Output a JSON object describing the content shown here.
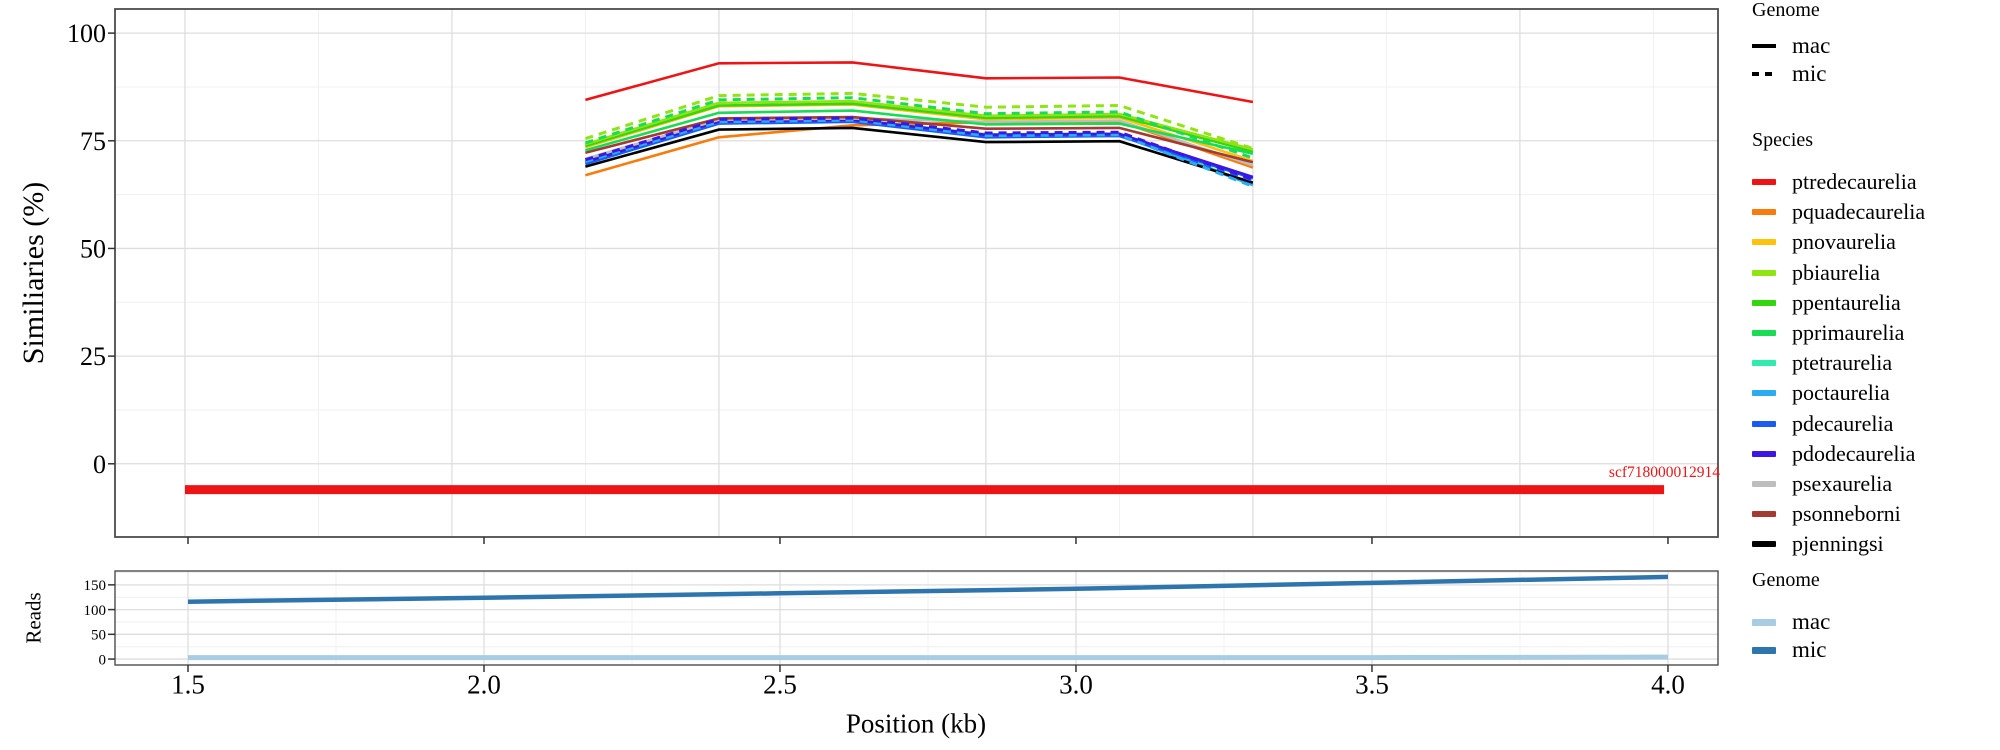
{
  "chart_data": [
    {
      "id": "similarity_panel",
      "type": "line",
      "title": "",
      "xlabel": "",
      "ylabel": "Similiaries (%)",
      "grid": true,
      "x_domain": [
        1.369,
        4.371
      ],
      "y_domain": [
        -17,
        105.6
      ],
      "x_breaks": {
        "major": [
          1.5,
          2.0,
          2.5,
          3.0,
          3.5,
          4.0
        ],
        "minor": [
          1.75,
          2.25,
          2.75,
          3.25,
          3.75,
          4.25
        ]
      },
      "y_breaks": {
        "major": [
          0,
          25,
          50,
          75,
          100
        ],
        "minor": [
          12.5,
          37.5,
          62.5,
          87.5
        ]
      },
      "y_tick_labels": [
        "0",
        "25",
        "50",
        "75",
        "100"
      ],
      "x": [
        2.25,
        2.5,
        2.75,
        3.0,
        3.25,
        3.5
      ],
      "series": [
        {
          "species": "pquadecaurelia",
          "genome": "mac",
          "color": "#F97B0B",
          "dash": false,
          "values": [
            67,
            75.8,
            78.6,
            79.3,
            79.5,
            68.8
          ]
        },
        {
          "species": "pnovaurelia",
          "genome": "mac",
          "color": "#FEC10E",
          "dash": false,
          "values": [
            73.5,
            83,
            83.4,
            80,
            80.4,
            70.3
          ]
        },
        {
          "species": "ptetraurelia",
          "genome": "mac",
          "color": "#2FECAC",
          "dash": false,
          "values": [
            70.4,
            79.6,
            80,
            76.5,
            76.7,
            64.9
          ]
        },
        {
          "species": "poctaurelia",
          "genome": "mac",
          "color": "#2BABF0",
          "dash": false,
          "values": [
            70,
            79.2,
            79.6,
            76.1,
            76.3,
            64.7
          ]
        },
        {
          "species": "pdecaurelia",
          "genome": "mac",
          "color": "#1A5CF2",
          "dash": false,
          "values": [
            69.6,
            79,
            79.4,
            75.8,
            76.1,
            66.3
          ]
        },
        {
          "species": "pdodecaurelia",
          "genome": "mac",
          "color": "#3B16E4",
          "dash": false,
          "values": [
            70.1,
            79.5,
            79.9,
            76.4,
            76.6,
            66.6
          ]
        },
        {
          "species": "psexaurelia",
          "genome": "mac",
          "color": "#BDBDBD",
          "dash": false,
          "values": [
            70.8,
            79.9,
            80.2,
            79.4,
            79.7,
            69.3
          ]
        },
        {
          "species": "psonneborni",
          "genome": "mac",
          "color": "#A33B32",
          "dash": false,
          "values": [
            72.2,
            80.2,
            80.5,
            77.8,
            78,
            70
          ]
        },
        {
          "species": "pjenningsi",
          "genome": "mac",
          "color": "#000000",
          "dash": false,
          "values": [
            69,
            77.6,
            78,
            74.7,
            74.9,
            65.3
          ]
        },
        {
          "species": "ppentaurelia",
          "genome": "mac",
          "color": "#33D60F",
          "dash": false,
          "values": [
            73.8,
            83.2,
            83.6,
            80.3,
            80.7,
            72.5
          ]
        },
        {
          "species": "pbiaurelia",
          "genome": "mac",
          "color": "#8FE412",
          "dash": false,
          "values": [
            74.2,
            83.8,
            84.2,
            80.8,
            81.2,
            73
          ]
        },
        {
          "species": "pprimaurelia",
          "genome": "mac",
          "color": "#19DC55",
          "dash": false,
          "values": [
            72.8,
            81.5,
            82,
            78.8,
            79,
            72
          ]
        },
        {
          "species": "pdecaurelia",
          "genome": "mic",
          "color": "#1A5CF2",
          "dash": true,
          "values": [
            69.8,
            79.2,
            79.6,
            76,
            76.2,
            65.8
          ]
        },
        {
          "species": "poctaurelia",
          "genome": "mic",
          "color": "#2BABF0",
          "dash": true,
          "values": [
            70.2,
            79.4,
            79.8,
            76.2,
            76.4,
            64.4
          ]
        },
        {
          "species": "pdodecaurelia",
          "genome": "mic",
          "color": "#3B16E4",
          "dash": true,
          "values": [
            70.6,
            80,
            80.3,
            76.8,
            77,
            66
          ]
        },
        {
          "species": "pprimaurelia",
          "genome": "mic",
          "color": "#19DC55",
          "dash": true,
          "values": [
            74.5,
            84.5,
            85,
            81.3,
            81.7,
            71
          ]
        },
        {
          "species": "pbiaurelia",
          "genome": "mic",
          "color": "#8FE412",
          "dash": true,
          "values": [
            75.5,
            85.5,
            86,
            82.8,
            83.2,
            73.2
          ]
        },
        {
          "species": "ptredecaurelia",
          "genome": "mac",
          "color": "#EE1416",
          "dash": false,
          "values": [
            84.5,
            93,
            93.2,
            89.5,
            89.7,
            84
          ]
        }
      ],
      "annotation": {
        "label": "scf718000012914",
        "x_start": 1.5,
        "x_end": 4.27,
        "y": -6,
        "color": "#EE1416"
      }
    },
    {
      "id": "reads_panel",
      "type": "line",
      "title": "",
      "xlabel": "Position (kb)",
      "ylabel": "Reads",
      "grid": true,
      "x_domain": [
        1.3767,
        4.0845
      ],
      "y_domain": [
        -12,
        178
      ],
      "x_breaks": {
        "major": [
          1.5,
          2.0,
          2.5,
          3.0,
          3.5,
          4.0
        ],
        "minor": [
          1.75,
          2.25,
          2.75,
          3.25,
          3.75
        ]
      },
      "x_tick_labels": [
        "1.5",
        "2.0",
        "2.5",
        "3.0",
        "3.5",
        "4.0"
      ],
      "y_breaks": {
        "major": [
          0,
          50,
          100,
          150
        ],
        "minor": [
          25,
          75,
          125,
          175
        ]
      },
      "y_tick_labels": [
        "0",
        "50",
        "100",
        "150"
      ],
      "x": [
        1.5,
        2.0,
        2.5,
        3.0,
        3.5,
        4.0
      ],
      "series": [
        {
          "name": "mac",
          "color": "#A8CDE2",
          "width": 5,
          "dash": false,
          "values": [
            3,
            3,
            3,
            3,
            3,
            4
          ]
        },
        {
          "name": "mic",
          "color": "#2E75AE",
          "width": 4.5,
          "dash": false,
          "values": [
            116,
            124,
            133,
            142,
            154,
            166
          ]
        }
      ]
    }
  ],
  "legend": {
    "genome_top": {
      "title": "Genome",
      "items": [
        {
          "label": "mac",
          "style": "solid",
          "color": "#000000"
        },
        {
          "label": "mic",
          "style": "dashed",
          "color": "#000000"
        }
      ]
    },
    "species": {
      "title": "Species",
      "items": [
        {
          "label": "ptredecaurelia",
          "color": "#EE1416"
        },
        {
          "label": "pquadecaurelia",
          "color": "#F97B0B"
        },
        {
          "label": "pnovaurelia",
          "color": "#FEC10E"
        },
        {
          "label": "pbiaurelia",
          "color": "#8FE412"
        },
        {
          "label": "ppentaurelia",
          "color": "#33D60F"
        },
        {
          "label": "pprimaurelia",
          "color": "#19DC55"
        },
        {
          "label": "ptetraurelia",
          "color": "#2FECAC"
        },
        {
          "label": "poctaurelia",
          "color": "#2BABF0"
        },
        {
          "label": "pdecaurelia",
          "color": "#1A5CF2"
        },
        {
          "label": "pdodecaurelia",
          "color": "#3B16E4"
        },
        {
          "label": "psexaurelia",
          "color": "#BDBDBD"
        },
        {
          "label": "psonneborni",
          "color": "#A33B32"
        },
        {
          "label": "pjenningsi",
          "color": "#000000"
        }
      ]
    },
    "genome_bottom": {
      "title": "Genome",
      "items": [
        {
          "label": "mac",
          "color": "#A8CDE2"
        },
        {
          "label": "mic",
          "color": "#2E75AE"
        }
      ]
    }
  },
  "style": {
    "grid_major": "#DEDEDE",
    "grid_minor": "#F0F0F0",
    "panel_border": "#4D4D4D",
    "tick_color": "#333333"
  }
}
